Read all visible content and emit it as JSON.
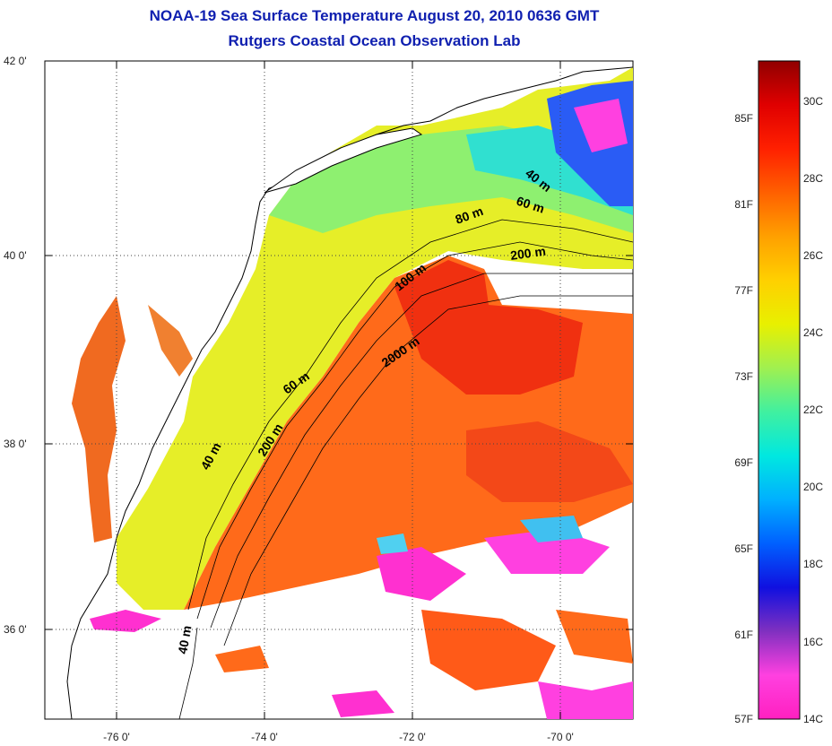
{
  "title": "NOAA-19 Sea Surface Temperature August 20, 2010 0636 GMT",
  "subtitle": "Rutgers Coastal Ocean Observation Lab",
  "lat_ticks": [
    "42 0'",
    "40 0'",
    "38 0'",
    "36 0'"
  ],
  "lon_ticks": [
    "-76 0'",
    "-74 0'",
    "-72 0'",
    "-70 0'"
  ],
  "isobaths": [
    {
      "label": "40 m",
      "rot": 38
    },
    {
      "label": "60 m",
      "rot": 18
    },
    {
      "label": "80 m",
      "rot": -20
    },
    {
      "label": "200 m",
      "rot": -8
    },
    {
      "label": "100 m",
      "rot": -38
    },
    {
      "label": "2000 m",
      "rot": -35
    },
    {
      "label": "60 m",
      "rot": -35
    },
    {
      "label": "200 m",
      "rot": -58
    },
    {
      "label": "40 m",
      "rot": -62
    },
    {
      "label": "40 m",
      "rot": -80
    }
  ],
  "colorbar": {
    "fahrenheit": [
      "85F",
      "81F",
      "77F",
      "73F",
      "69F",
      "65F",
      "61F",
      "57F"
    ],
    "celsius": [
      "30C",
      "28C",
      "26C",
      "24C",
      "22C",
      "20C",
      "18C",
      "16C",
      "14C"
    ],
    "colors": [
      "#ff20c0",
      "#ff40e0",
      "#8030c0",
      "#1010e0",
      "#0060ff",
      "#00b0ff",
      "#00e8e0",
      "#40f0a0",
      "#a0f050",
      "#e8f000",
      "#ffd000",
      "#ffa000",
      "#ff6000",
      "#ff2000",
      "#e00000",
      "#900000"
    ]
  },
  "colors": {
    "title": "#1020b0",
    "warm": "#ff6a1a",
    "hot": "#f03010",
    "shelf": "#e8f020",
    "cool": "#30e0c0",
    "cold": "#2050ff",
    "cloud": "#ff30d0"
  }
}
